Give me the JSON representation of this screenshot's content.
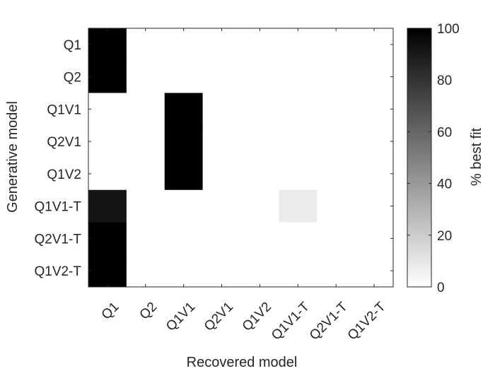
{
  "chart_data": {
    "type": "heatmap",
    "xlabel": "Recovered model",
    "ylabel": "Generative model",
    "x_categories": [
      "Q1",
      "Q2",
      "Q1V1",
      "Q2V1",
      "Q1V2",
      "Q1V1-T",
      "Q2V1-T",
      "Q1V2-T"
    ],
    "y_categories": [
      "Q1",
      "Q2",
      "Q1V1",
      "Q2V1",
      "Q1V2",
      "Q1V1-T",
      "Q2V1-T",
      "Q1V2-T"
    ],
    "values": [
      [
        100,
        0,
        0,
        0,
        0,
        0,
        0,
        0
      ],
      [
        100,
        0,
        0,
        0,
        0,
        0,
        0,
        0
      ],
      [
        0,
        0,
        100,
        0,
        0,
        0,
        0,
        0
      ],
      [
        0,
        0,
        100,
        0,
        0,
        0,
        0,
        0
      ],
      [
        0,
        0,
        100,
        0,
        0,
        0,
        0,
        0
      ],
      [
        92,
        0,
        0,
        0,
        0,
        8,
        0,
        0
      ],
      [
        100,
        0,
        0,
        0,
        0,
        0,
        0,
        0
      ],
      [
        100,
        0,
        0,
        0,
        0,
        0,
        0,
        0
      ]
    ],
    "colorbar": {
      "label": "% best fit",
      "range": [
        0,
        100
      ],
      "ticks": [
        "0",
        "20",
        "40",
        "60",
        "80",
        "100"
      ],
      "colormap": "white-to-black"
    }
  }
}
